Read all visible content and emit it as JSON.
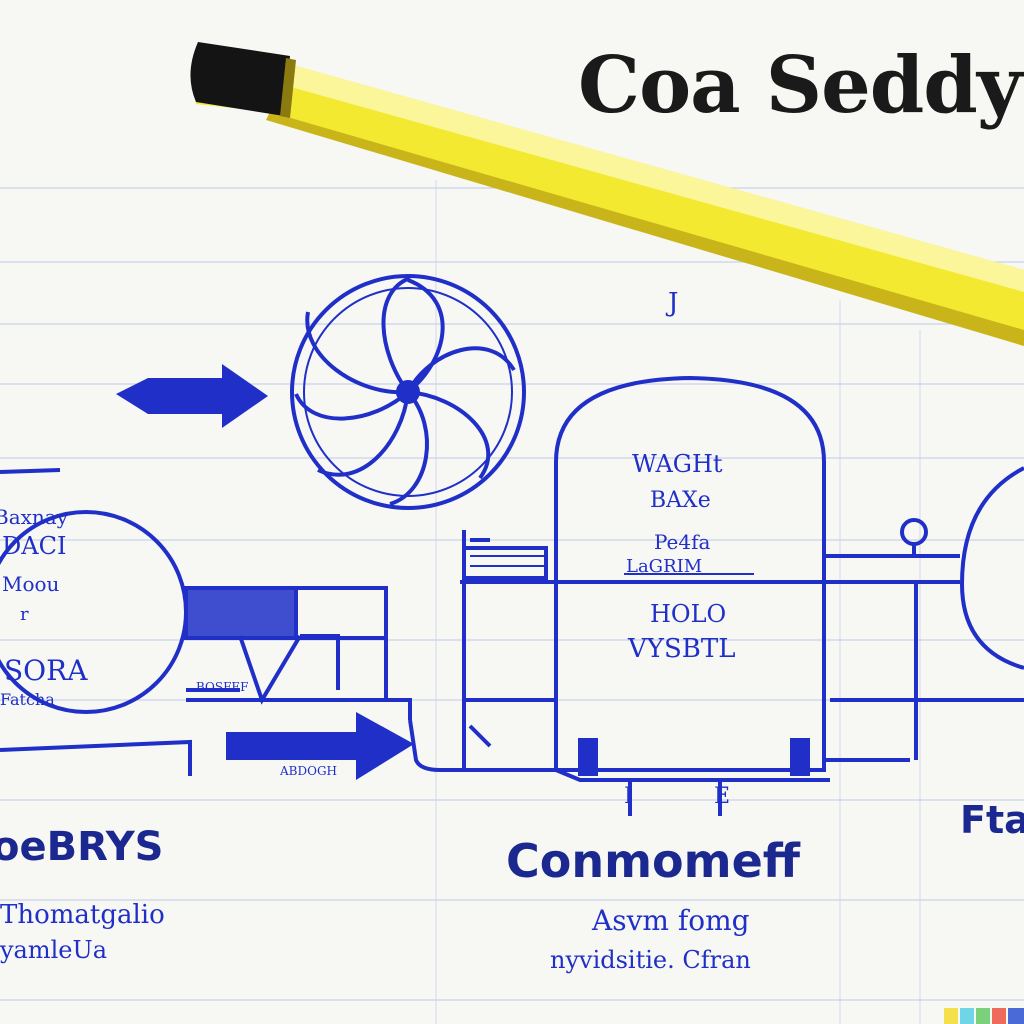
{
  "title": "Coa Seddy",
  "mark_top": "J",
  "left_tank": {
    "lines": [
      "Baxnay",
      "DACI",
      "Moou",
      "r",
      "SORA",
      "Fatcha"
    ]
  },
  "center_tank": {
    "lines": [
      "WAGHt",
      "BAXe",
      "Pe4fa",
      "LaGRIM",
      "HOLO",
      "VYSBTL"
    ]
  },
  "left_block_caption": "BOSFEF",
  "left_pipe_label": "ABDOGH",
  "right_ticks": [
    "I",
    "E"
  ],
  "labels": {
    "left_heading": "oeBRYS",
    "left_sub1": "Thomatgalio",
    "left_sub2": "yamleUa",
    "center_heading": "Conmomeff",
    "center_sub1": "Asvm fomg",
    "center_sub2": "nyvidsitie. Cfran",
    "right_heading": "Fta"
  },
  "colors": {
    "ink": "#1f2fc8",
    "ink_dark": "#1b2890",
    "pencil": "#f2e930",
    "paper": "#f7f7f3",
    "rule": "#c9d2ec"
  }
}
